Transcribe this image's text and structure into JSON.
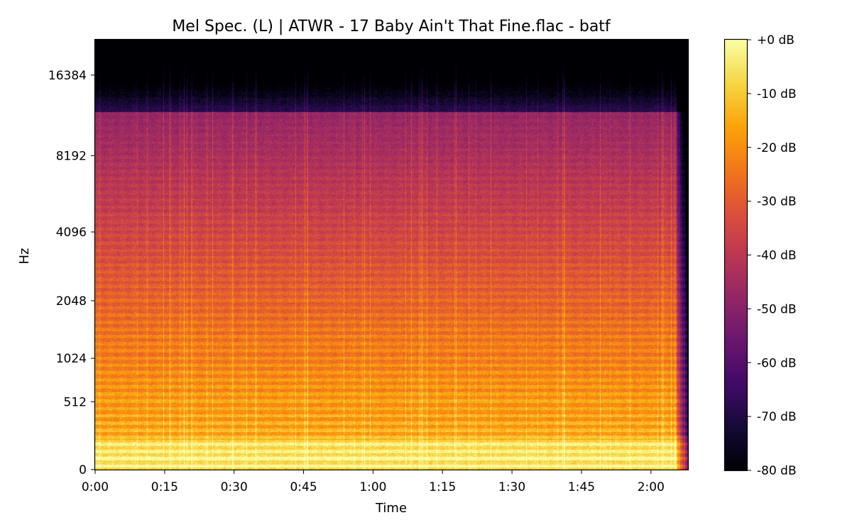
{
  "chart_data": {
    "type": "heatmap",
    "title": "Mel Spec. (L) | ATWR - 17 Baby Ain't That Fine.flac - batf",
    "xlabel": "Time",
    "ylabel": "Hz",
    "colormap": "inferno",
    "x_unit": "seconds",
    "xlim": [
      0,
      128
    ],
    "x_ticks": [
      0,
      15,
      30,
      45,
      60,
      75,
      90,
      105,
      120
    ],
    "x_tick_labels": [
      "0:00",
      "0:15",
      "0:30",
      "0:45",
      "1:00",
      "1:15",
      "1:30",
      "1:45",
      "2:00"
    ],
    "y_scale": "mel",
    "ylim_hz": [
      0,
      22050
    ],
    "y_ticks": [
      0,
      512,
      1024,
      2048,
      4096,
      8192,
      16384
    ],
    "y_tick_labels": [
      "0",
      "512",
      "1024",
      "2048",
      "4096",
      "8192",
      "16384"
    ],
    "colorbar": {
      "range_db": [
        -80,
        0
      ],
      "ticks": [
        0,
        -10,
        -20,
        -30,
        -40,
        -50,
        -60,
        -70,
        -80
      ],
      "tick_labels": [
        "+0 dB",
        "-10 dB",
        "-20 dB",
        "-30 dB",
        "-40 dB",
        "-50 dB",
        "-60 dB",
        "-70 dB",
        "-80 dB"
      ]
    },
    "audio_end_s": 125.5,
    "hf_cutoff_hz": 12000,
    "grid": false
  }
}
